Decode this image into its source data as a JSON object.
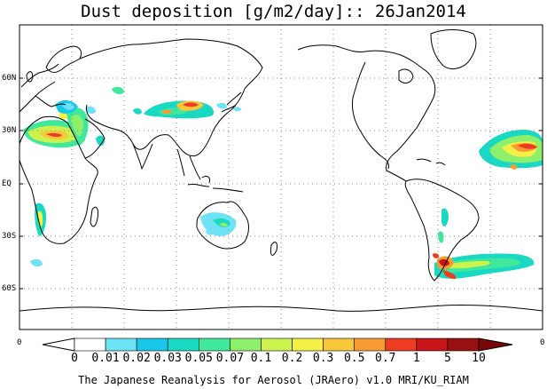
{
  "title": "Dust deposition [g/m2/day]:: 26Jan2014",
  "credit": "The Japanese Reanalysis for Aerosol (JRAero) v1.0 MRI/KU_RIAM",
  "lat_labels": [
    "60N",
    "30N",
    "EQ",
    "30S",
    "60S"
  ],
  "colorbar": {
    "edge_left": "0",
    "edge_right": "0",
    "levels": [
      "0",
      "0.01",
      "0.02",
      "0.03",
      "0.05",
      "0.07",
      "0.1",
      "0.2",
      "0.3",
      "0.5",
      "0.7",
      "1",
      "5",
      "10"
    ],
    "colors": [
      "#ffffff",
      "#6fe3f6",
      "#18c7ea",
      "#19d9c2",
      "#3fe89b",
      "#8ef06a",
      "#cdf24e",
      "#f4f046",
      "#f8c83b",
      "#f79a32",
      "#ee3b23",
      "#c81616",
      "#991010",
      "#7a0707"
    ]
  },
  "map": {
    "projection": "equirectangular, Pacific-centred",
    "background_color": "#ffffff",
    "coastline_color": "#000000",
    "grid": "dotted lat/lon lines"
  }
}
